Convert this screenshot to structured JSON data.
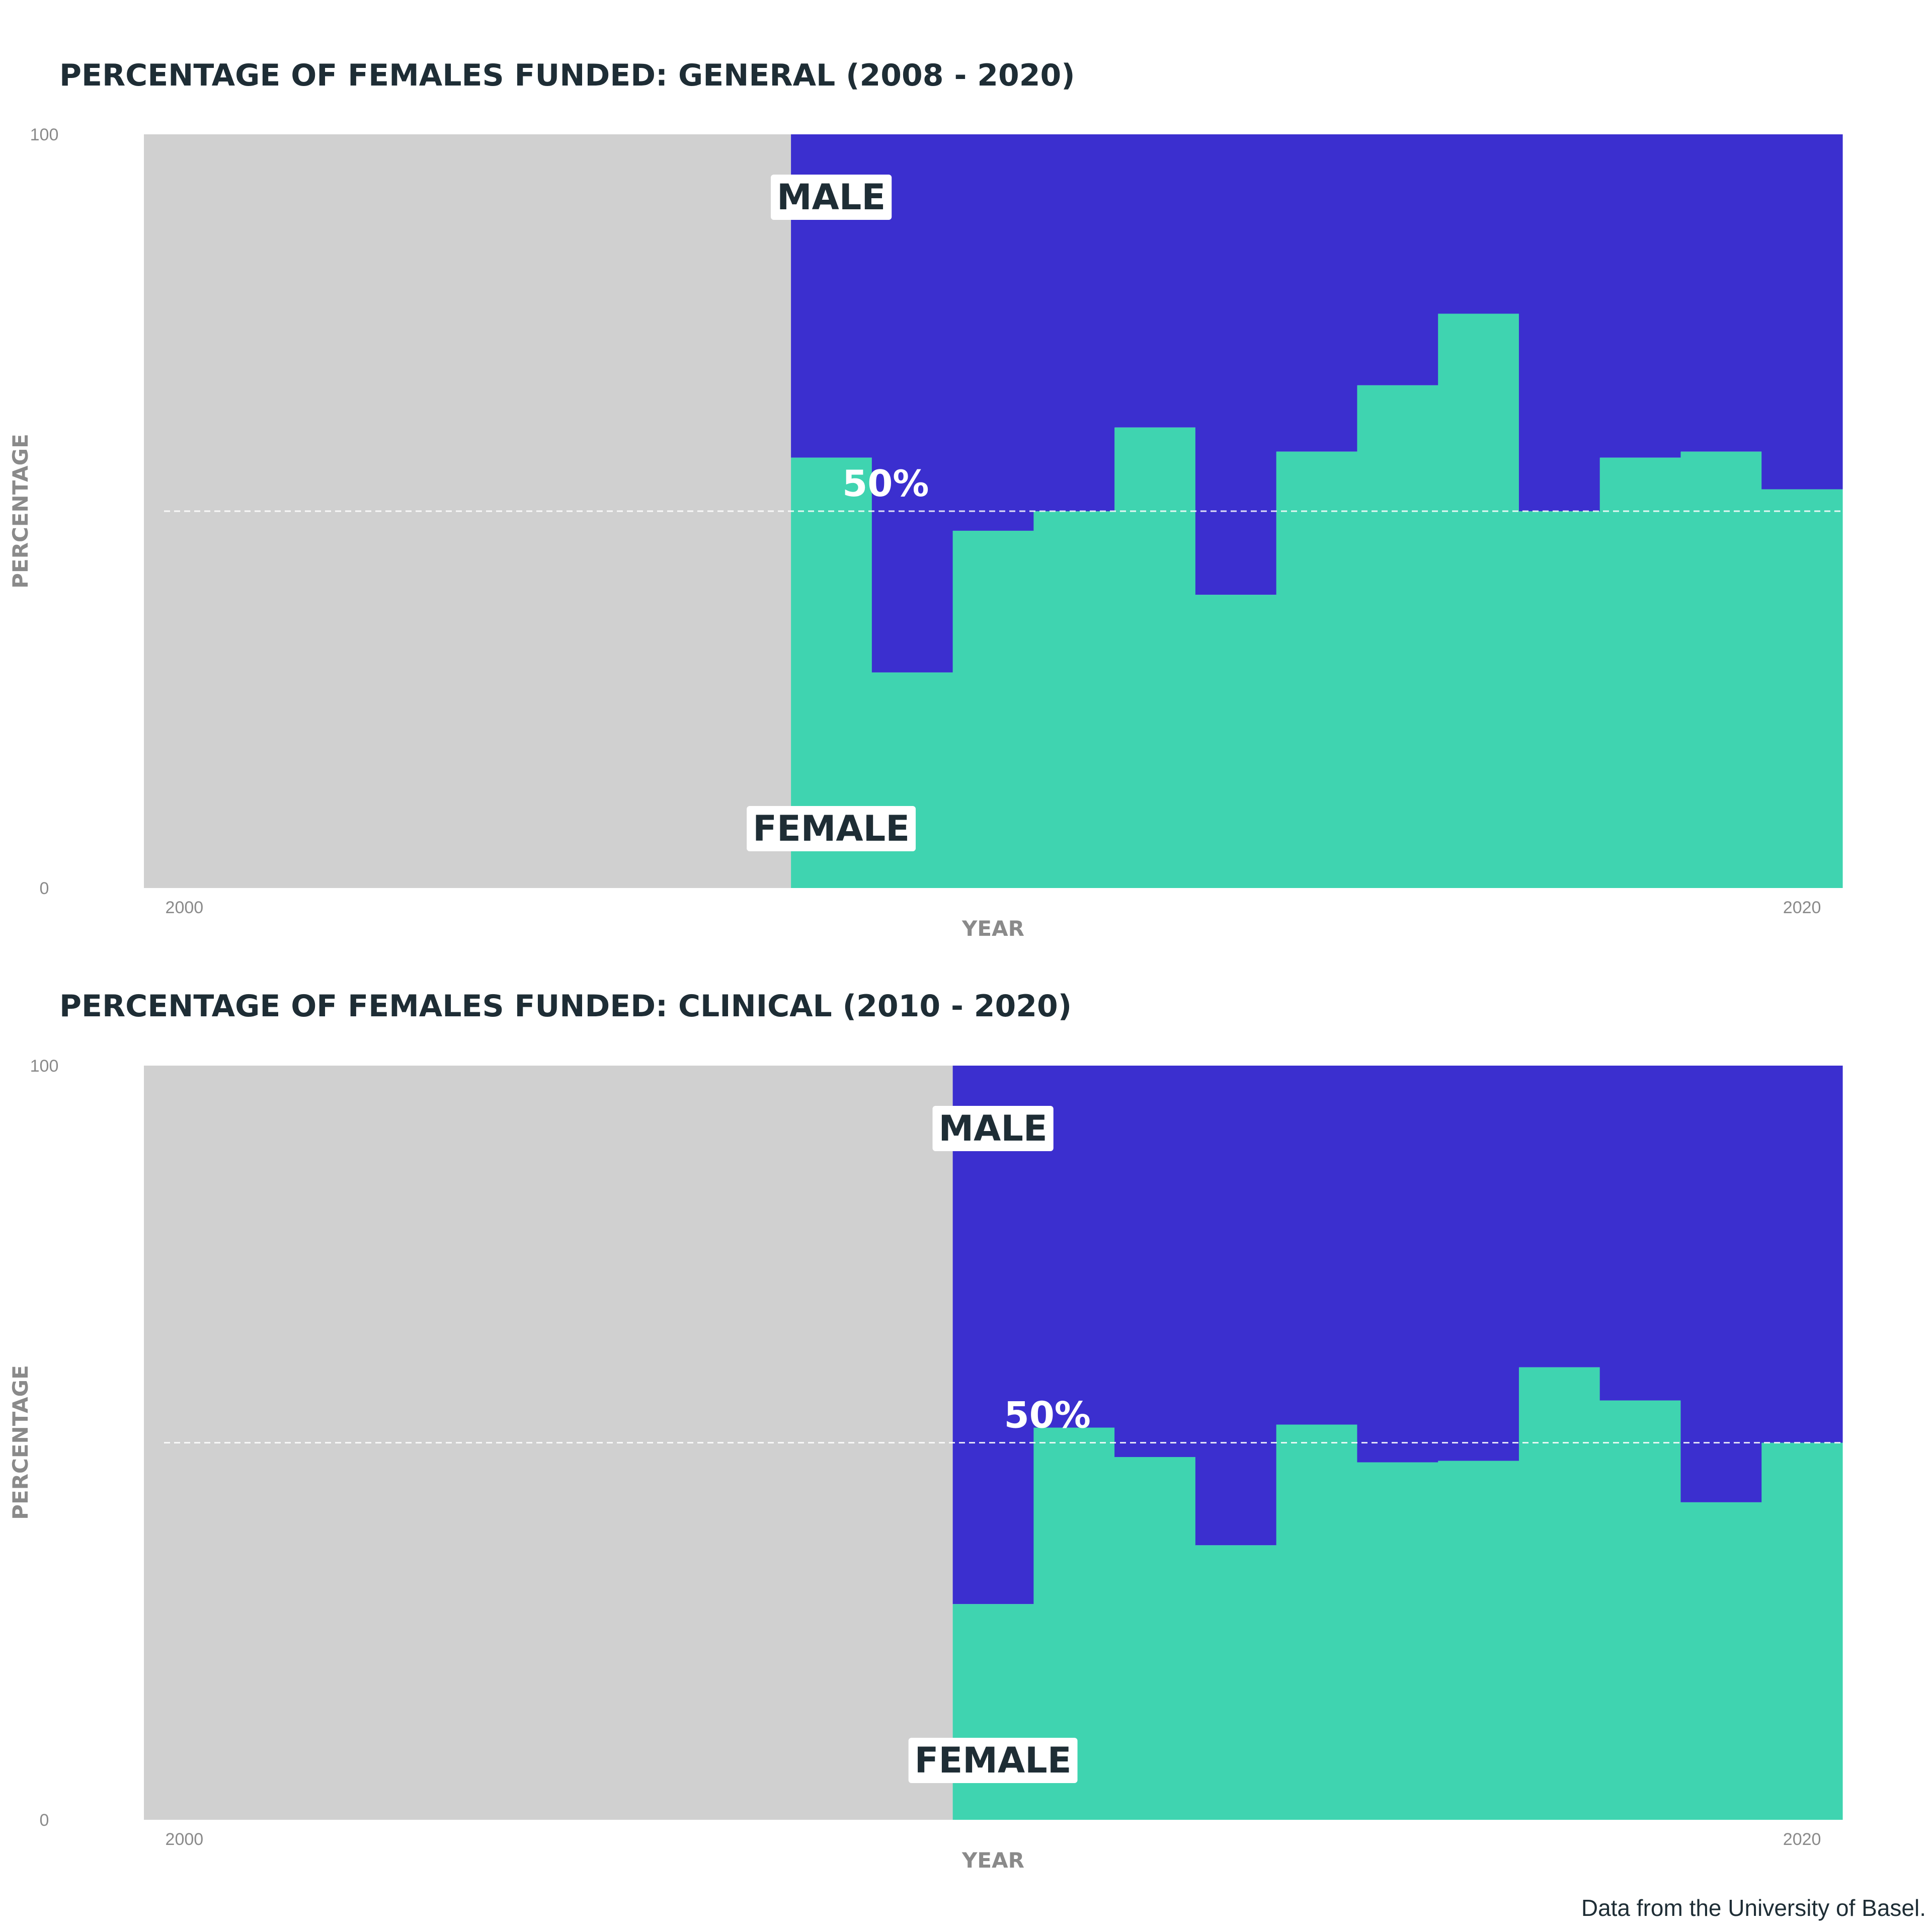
{
  "colors": {
    "female": "#3fd4b0",
    "male": "#3b2fcf",
    "no_data": "#d0d0d0",
    "title": "#1e2d35",
    "muted": "#8a8a8a"
  },
  "caption": "Data from the University of Basel.",
  "chart_data": [
    {
      "type": "area",
      "title": "PERCENTAGE OF FEMALES FUNDED: GENERAL (2008 - 2020)",
      "xlabel": "YEAR",
      "ylabel": "PERCENTAGE",
      "xlim": [
        2000,
        2021
      ],
      "ylim": [
        0,
        100
      ],
      "x_ticks": [
        "2000",
        "2020"
      ],
      "y_ticks": [
        "0",
        "100"
      ],
      "grid": false,
      "reference_line": {
        "y": 50,
        "label": "50%"
      },
      "series": [
        {
          "name": "FEMALE",
          "years": [
            2008,
            2009,
            2010,
            2011,
            2012,
            2013,
            2014,
            2015,
            2016,
            2017,
            2018,
            2019,
            2020
          ],
          "values": [
            57.1,
            28.6,
            47.4,
            50.0,
            61.1,
            38.9,
            57.9,
            66.7,
            76.2,
            50.0,
            57.1,
            57.9,
            52.9
          ]
        },
        {
          "name": "MALE",
          "values": [
            42.9,
            71.4,
            52.6,
            50.0,
            38.9,
            61.1,
            42.1,
            33.3,
            23.8,
            50.0,
            42.9,
            42.1,
            47.1
          ]
        }
      ]
    },
    {
      "type": "area",
      "title": "PERCENTAGE OF FEMALES FUNDED: CLINICAL (2010 - 2020)",
      "xlabel": "YEAR",
      "ylabel": "PERCENTAGE",
      "xlim": [
        2000,
        2021
      ],
      "ylim": [
        0,
        100
      ],
      "x_ticks": [
        "2000",
        "2020"
      ],
      "y_ticks": [
        "0",
        "100"
      ],
      "grid": false,
      "reference_line": {
        "y": 50,
        "label": "50%"
      },
      "series": [
        {
          "name": "FEMALE",
          "years": [
            2010,
            2011,
            2012,
            2013,
            2014,
            2015,
            2016,
            2017,
            2018,
            2019,
            2020
          ],
          "values": [
            28.6,
            52.0,
            48.1,
            36.4,
            52.4,
            47.4,
            47.6,
            60.0,
            55.6,
            42.1,
            50.0
          ]
        },
        {
          "name": "MALE",
          "values": [
            71.4,
            48.0,
            51.9,
            63.6,
            47.6,
            52.6,
            52.4,
            40.0,
            44.4,
            57.9,
            50.0
          ]
        }
      ]
    }
  ]
}
